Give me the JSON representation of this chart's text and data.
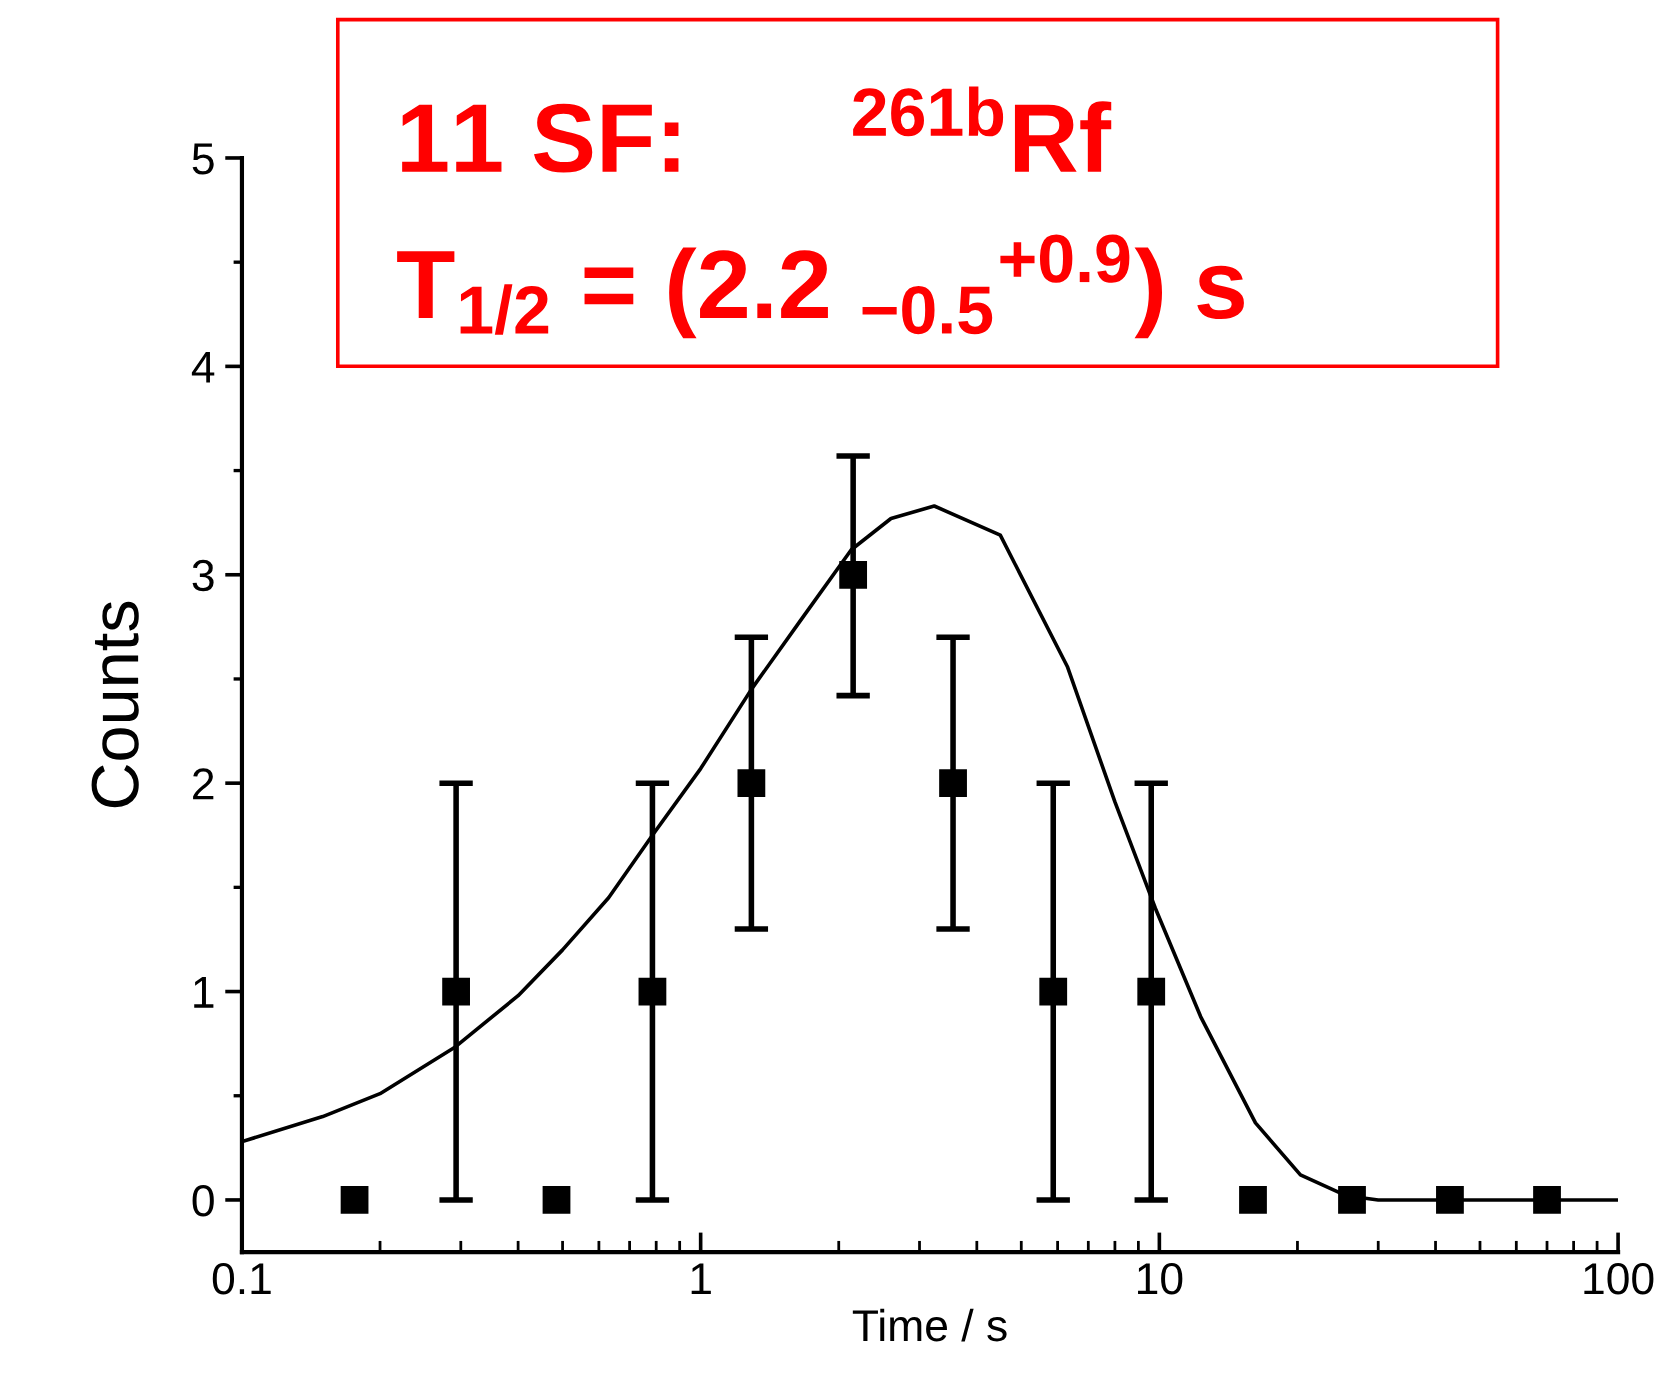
{
  "chart_data": {
    "type": "scatter",
    "xlabel": "Time / s",
    "ylabel": "Counts",
    "log": "x",
    "xlim": [
      0.1,
      100
    ],
    "xticks": [
      0.1,
      1,
      10,
      100
    ],
    "ylim": [
      -0.25,
      5
    ],
    "yticks": [
      0,
      1,
      2,
      3,
      4,
      5
    ],
    "grid": false,
    "legend": false,
    "marker": "square",
    "annotations": [
      "11 SF:      $^{261b}$Rf",
      "T$_{1/2}$ = (2.2 $_{−0.5}$$^{+0.9}$) s"
    ],
    "series": [
      {
        "color": "#000000",
        "x": [
          0.176,
          0.293,
          0.485,
          0.785,
          1.29,
          2.15,
          3.55,
          5.87,
          9.6,
          16.0,
          26.3,
          43,
          70
        ],
        "values": [
          0,
          1,
          0,
          1,
          2,
          3,
          2,
          1,
          1,
          0,
          0,
          0,
          0
        ],
        "errors": [
          null,
          [
            0,
            2
          ],
          null,
          [
            0,
            2
          ],
          [
            1.3,
            2.7
          ],
          [
            2.42,
            3.57
          ],
          [
            1.3,
            2.7
          ],
          [
            0,
            2
          ],
          [
            0,
            2
          ],
          null,
          null,
          null,
          null
        ]
      },
      {
        "type": "line",
        "color": "#000000",
        "marker": "none",
        "x": [
          0.1,
          0.15,
          0.2,
          0.29,
          0.4,
          0.5,
          0.63,
          0.785,
          1.0,
          1.29,
          1.65,
          2.13,
          2.6,
          3.23,
          4.5,
          6.3,
          8.0,
          9.8,
          12.3,
          16.2,
          20.3,
          25.6,
          30,
          100
        ],
        "values": [
          0.28,
          0.4,
          0.51,
          0.73,
          0.98,
          1.2,
          1.45,
          1.75,
          2.07,
          2.45,
          2.78,
          3.12,
          3.27,
          3.33,
          3.19,
          2.56,
          1.91,
          1.4,
          0.88,
          0.37,
          0.12,
          0.02,
          0,
          0
        ]
      }
    ]
  }
}
